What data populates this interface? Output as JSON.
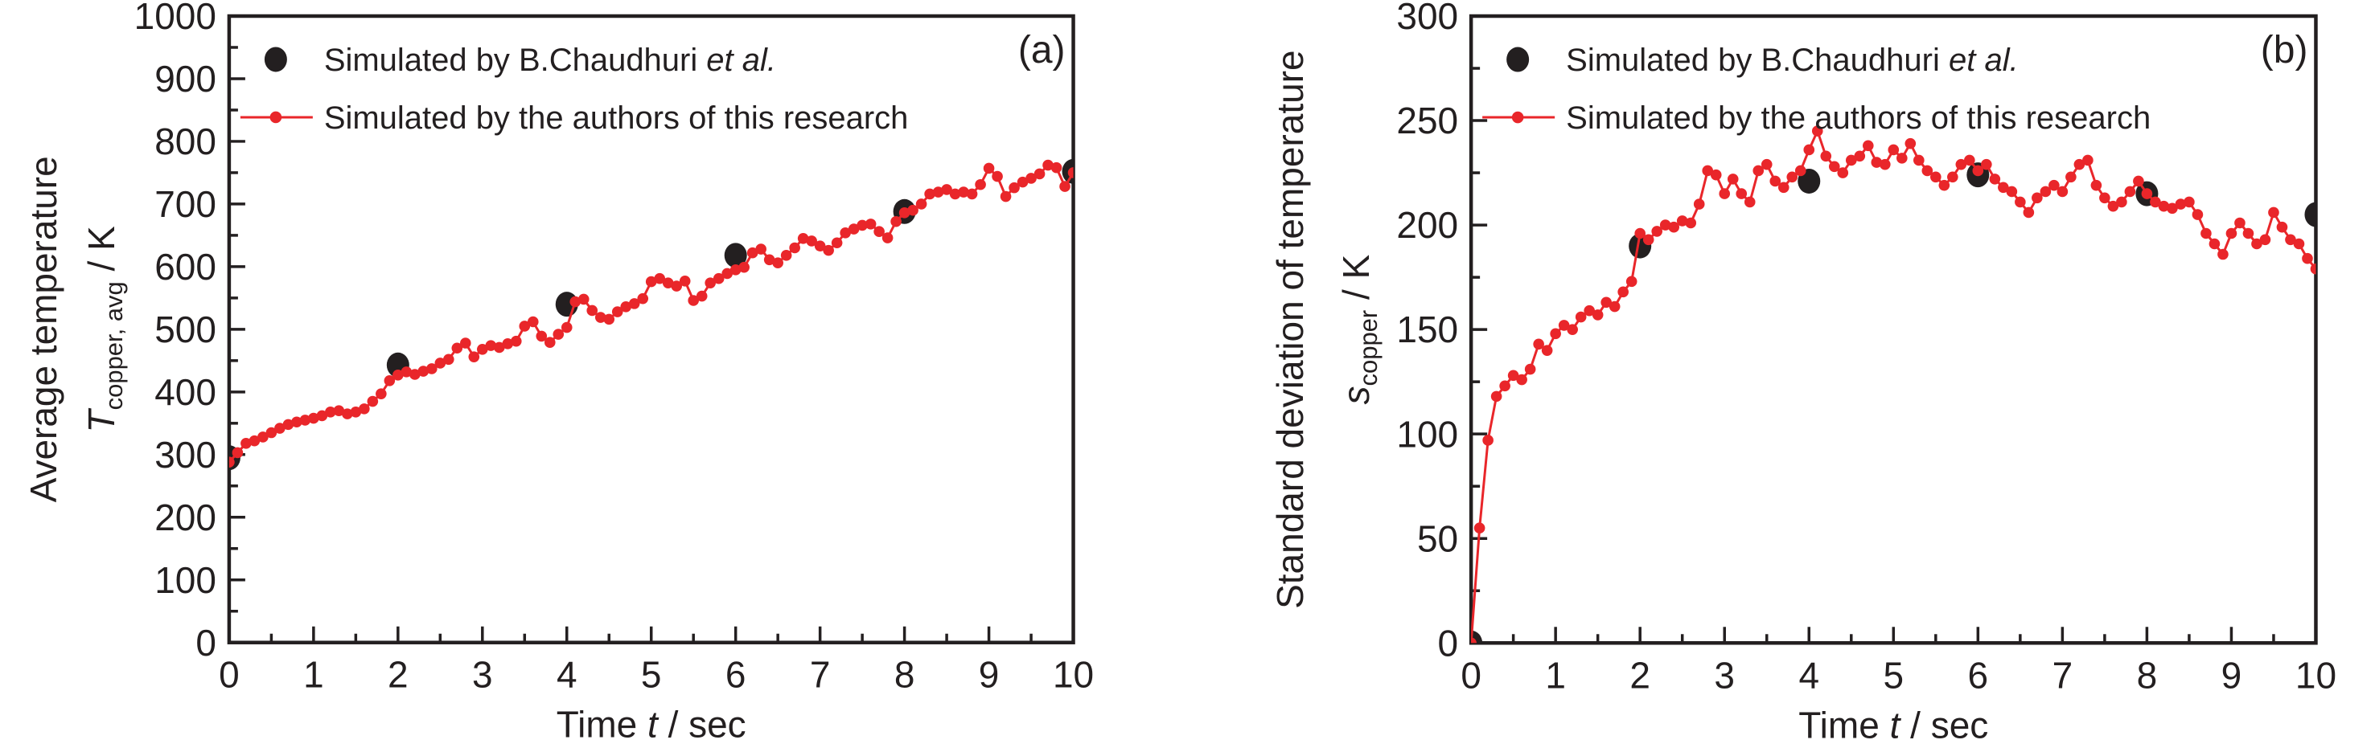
{
  "figure": {
    "background": "#ffffff",
    "text_color": "#231f20",
    "accent_red": "#e9262a"
  },
  "chart_data": [
    {
      "type": "line",
      "panel_label": "(a)",
      "title": "",
      "xlabel_parts": {
        "pre": "Time ",
        "italic": "t",
        "post": " / sec"
      },
      "ylabel_line1": "Average temperature",
      "ylabel_line2_parts": {
        "italic": "T",
        "sub": "copper, avg",
        "post": " / K"
      },
      "xlim": [
        0,
        10
      ],
      "ylim": [
        0,
        1000
      ],
      "x_major_ticks": [
        0,
        1,
        2,
        3,
        4,
        5,
        6,
        7,
        8,
        9,
        10
      ],
      "x_minor_step": 0.5,
      "y_major_ticks": [
        0,
        100,
        200,
        300,
        400,
        500,
        600,
        700,
        800,
        900,
        1000
      ],
      "y_minor_step": 50,
      "grid": false,
      "legend_position": "top-left",
      "legend": [
        {
          "marker": "black-dot",
          "text_pre": "Simulated by B.Chaudhuri ",
          "text_italic": "et al."
        },
        {
          "marker": "red-line-dot",
          "text_pre": "Simulated by the authors of this research",
          "text_italic": ""
        }
      ],
      "series": [
        {
          "name": "Simulated by B.Chaudhuri et al.",
          "style": "scatter-black",
          "color": "#231f20",
          "x": [
            0,
            2,
            4,
            6,
            8,
            10
          ],
          "values": [
            295,
            443,
            540,
            618,
            688,
            752
          ]
        },
        {
          "name": "Simulated by the authors of this research",
          "style": "line-markers-red",
          "color": "#e9262a",
          "t_start": 0,
          "t_step": 0.1,
          "values": [
            288,
            303,
            318,
            322,
            328,
            335,
            342,
            348,
            352,
            355,
            358,
            362,
            368,
            370,
            365,
            368,
            373,
            385,
            397,
            418,
            427,
            432,
            428,
            433,
            437,
            446,
            452,
            470,
            478,
            456,
            468,
            474,
            471,
            477,
            481,
            505,
            512,
            489,
            479,
            492,
            503,
            544,
            548,
            530,
            519,
            516,
            528,
            536,
            541,
            549,
            576,
            581,
            574,
            569,
            577,
            546,
            553,
            574,
            581,
            589,
            595,
            599,
            622,
            628,
            611,
            606,
            618,
            630,
            645,
            641,
            633,
            626,
            638,
            654,
            660,
            666,
            668,
            656,
            646,
            672,
            686,
            690,
            700,
            716,
            719,
            723,
            716,
            719,
            716,
            731,
            757,
            744,
            712,
            726,
            735,
            741,
            748,
            762,
            758,
            728,
            750
          ]
        }
      ]
    },
    {
      "type": "line",
      "panel_label": "(b)",
      "title": "",
      "xlabel_parts": {
        "pre": "Time ",
        "italic": "t",
        "post": " / sec"
      },
      "ylabel_line1": "Standard deviation of temperature",
      "ylabel_line2_parts": {
        "italic": "s",
        "sub": "copper",
        "post": " / K"
      },
      "xlim": [
        0,
        10
      ],
      "ylim": [
        0,
        300
      ],
      "x_major_ticks": [
        0,
        1,
        2,
        3,
        4,
        5,
        6,
        7,
        8,
        9,
        10
      ],
      "x_minor_step": 0.5,
      "y_major_ticks": [
        0,
        50,
        100,
        150,
        200,
        250,
        300
      ],
      "y_minor_step": 25,
      "grid": false,
      "legend_position": "top-left",
      "legend": [
        {
          "marker": "black-dot",
          "text_pre": "Simulated by B.Chaudhuri ",
          "text_italic": "et al."
        },
        {
          "marker": "red-line-dot",
          "text_pre": "Simulated by the authors of this research",
          "text_italic": ""
        }
      ],
      "series": [
        {
          "name": "Simulated by B.Chaudhuri et al.",
          "style": "scatter-black",
          "color": "#231f20",
          "x": [
            0,
            2,
            4,
            6,
            8,
            10
          ],
          "values": [
            0,
            190,
            221,
            224,
            215,
            205
          ]
        },
        {
          "name": "Simulated by the authors of this research",
          "style": "line-markers-red",
          "color": "#e9262a",
          "t_start": 0,
          "t_step": 0.1,
          "values": [
            0,
            55,
            97,
            118,
            123,
            128,
            126,
            131,
            143,
            140,
            148,
            152,
            150,
            156,
            159,
            157,
            163,
            161,
            168,
            173,
            196,
            193,
            197,
            200,
            199,
            202,
            201,
            210,
            226,
            224,
            215,
            222,
            215,
            211,
            226,
            229,
            221,
            218,
            223,
            226,
            236,
            245,
            233,
            228,
            225,
            231,
            233,
            238,
            230,
            229,
            236,
            232,
            239,
            231,
            226,
            223,
            219,
            223,
            229,
            231,
            226,
            229,
            222,
            218,
            216,
            211,
            206,
            213,
            216,
            219,
            216,
            223,
            229,
            231,
            219,
            213,
            209,
            211,
            216,
            221,
            215,
            211,
            209,
            208,
            210,
            211,
            205,
            196,
            191,
            186,
            196,
            201,
            196,
            191,
            193,
            206,
            199,
            193,
            191,
            184,
            179
          ]
        }
      ]
    }
  ]
}
